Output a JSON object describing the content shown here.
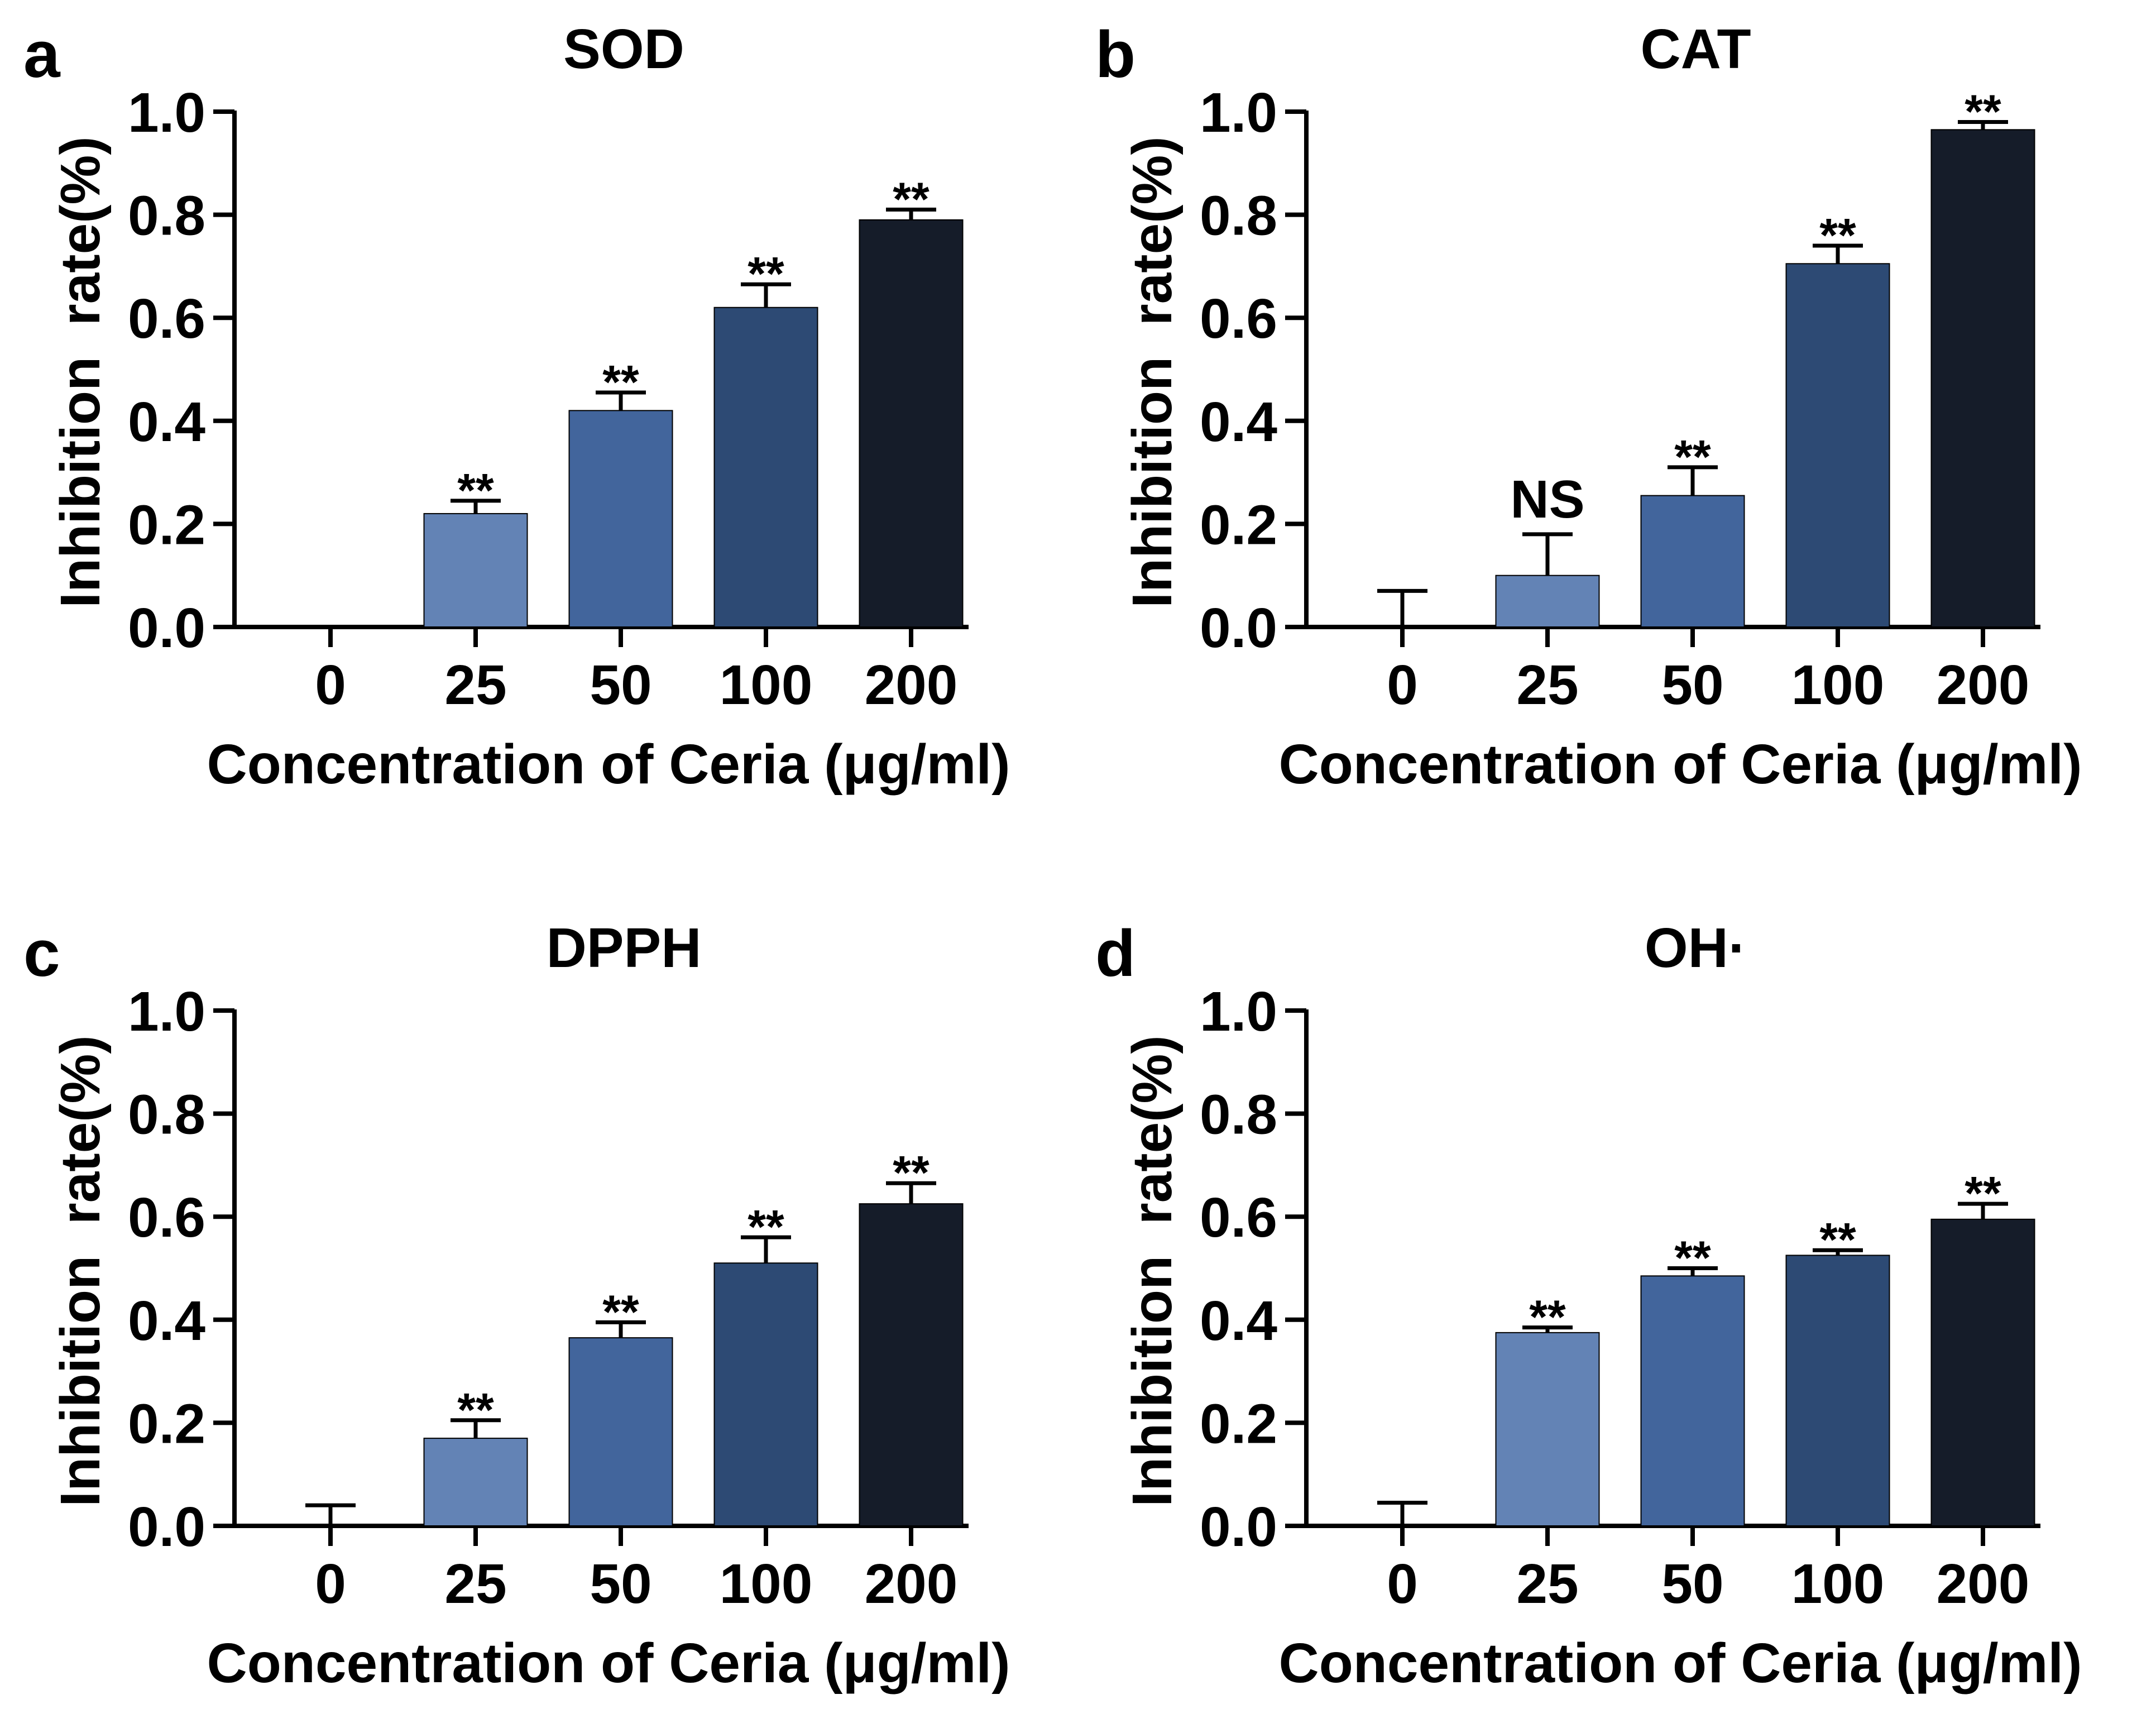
{
  "figure": {
    "bar_colors": [
      "#ffffff",
      "#6383b5",
      "#42659c",
      "#2d4a74",
      "#151c29"
    ]
  },
  "chart_data": [
    {
      "type": "bar",
      "panel": "a",
      "title": "SOD",
      "xlabel": "Concentration of Ceria (μg/ml)",
      "ylabel": "Inhibition  rate(%)",
      "categories": [
        "0",
        "25",
        "50",
        "100",
        "200"
      ],
      "values": [
        0,
        0.22,
        0.42,
        0.62,
        0.79
      ],
      "errors": [
        0,
        0.025,
        0.035,
        0.045,
        0.02
      ],
      "significance": [
        "",
        "**",
        "**",
        "**",
        "**"
      ],
      "ylim": [
        0,
        1.0
      ],
      "yticks": [
        "0.0",
        "0.2",
        "0.4",
        "0.6",
        "0.8",
        "1.0"
      ]
    },
    {
      "type": "bar",
      "panel": "b",
      "title": "CAT",
      "xlabel": "Concentration of Ceria (μg/ml)",
      "ylabel": "Inhibition  rate(%)",
      "categories": [
        "0",
        "25",
        "50",
        "100",
        "200"
      ],
      "values": [
        0,
        0.1,
        0.255,
        0.705,
        0.965
      ],
      "errors": [
        0.07,
        0.08,
        0.055,
        0.035,
        0.015
      ],
      "significance": [
        "",
        "NS",
        "**",
        "**",
        "**"
      ],
      "ylim": [
        0,
        1.0
      ],
      "yticks": [
        "0.0",
        "0.2",
        "0.4",
        "0.6",
        "0.8",
        "1.0"
      ]
    },
    {
      "type": "bar",
      "panel": "c",
      "title": "DPPH",
      "xlabel": "Concentration of Ceria (μg/ml)",
      "ylabel": "Inhibition  rate(%)",
      "categories": [
        "0",
        "25",
        "50",
        "100",
        "200"
      ],
      "values": [
        0,
        0.17,
        0.365,
        0.51,
        0.625
      ],
      "errors": [
        0.04,
        0.035,
        0.03,
        0.05,
        0.04
      ],
      "significance": [
        "",
        "**",
        "**",
        "**",
        "**"
      ],
      "ylim": [
        0,
        1.0
      ],
      "yticks": [
        "0.0",
        "0.2",
        "0.4",
        "0.6",
        "0.8",
        "1.0"
      ]
    },
    {
      "type": "bar",
      "panel": "d",
      "title": "OH·",
      "xlabel": "Concentration of Ceria (μg/ml)",
      "ylabel": "Inhibition  rate(%)",
      "categories": [
        "0",
        "25",
        "50",
        "100",
        "200"
      ],
      "values": [
        0,
        0.375,
        0.485,
        0.525,
        0.595
      ],
      "errors": [
        0.045,
        0.01,
        0.015,
        0.01,
        0.03
      ],
      "significance": [
        "",
        "**",
        "**",
        "**",
        "**"
      ],
      "ylim": [
        0,
        1.0
      ],
      "yticks": [
        "0.0",
        "0.2",
        "0.4",
        "0.6",
        "0.8",
        "1.0"
      ]
    }
  ]
}
